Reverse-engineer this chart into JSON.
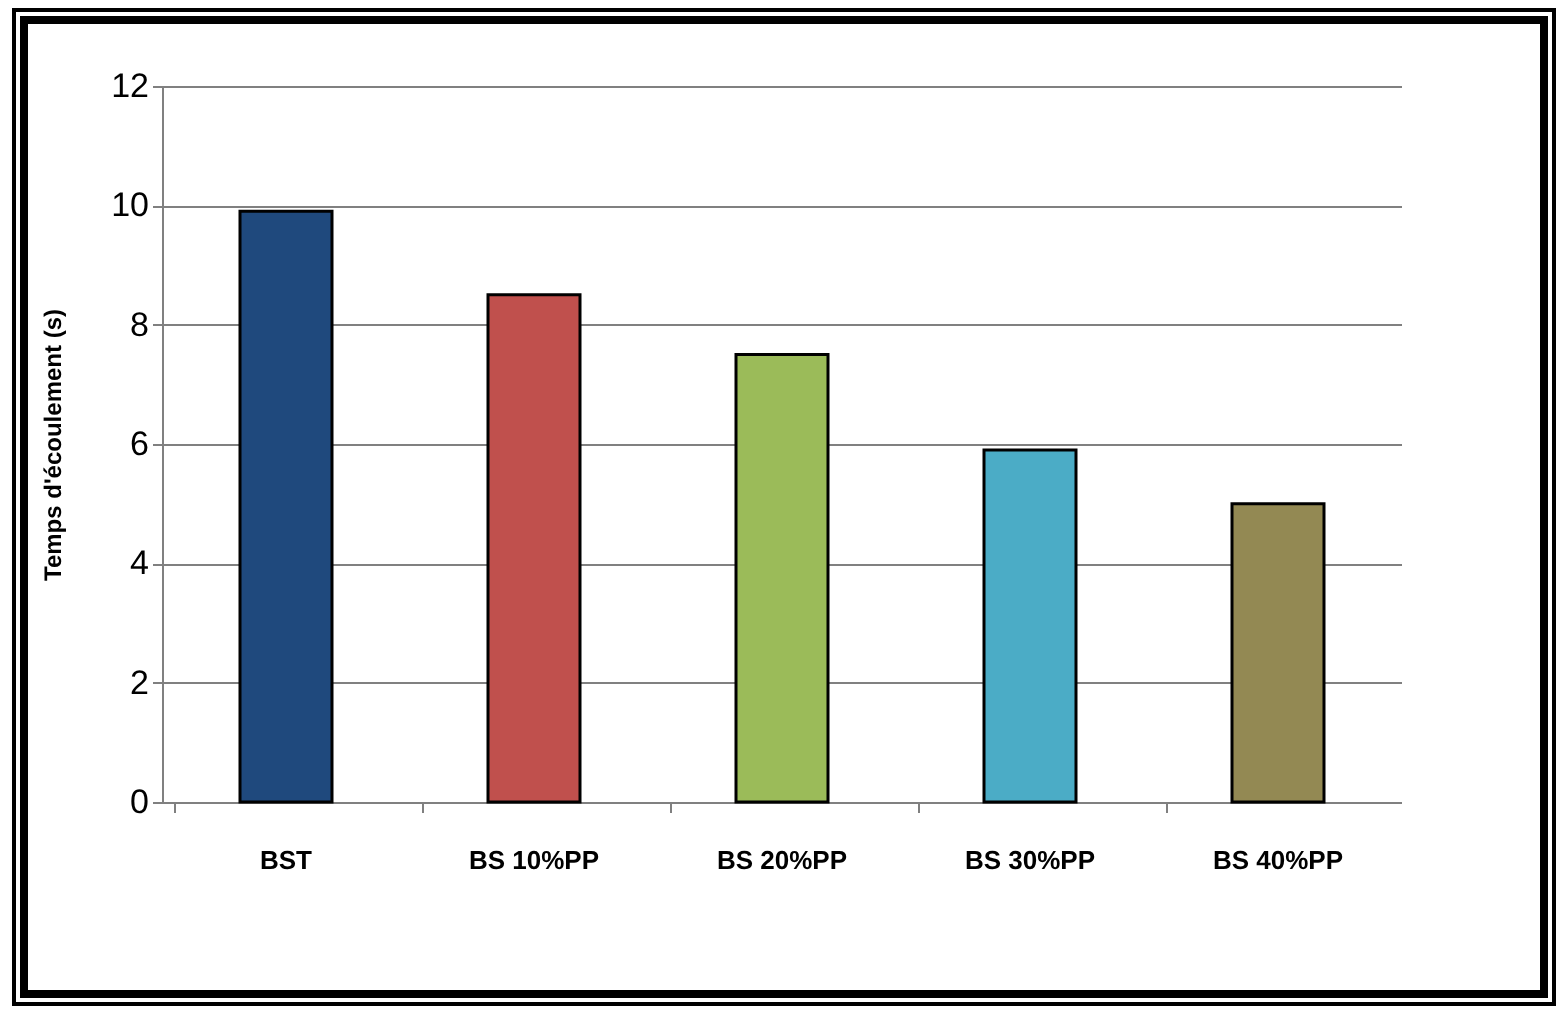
{
  "chart_data": {
    "type": "bar",
    "ylabel": "Temps d'écoulement (s)",
    "categories": [
      "BST",
      "BS 10%PP",
      "BS 20%PP",
      "BS 30%PP",
      "BS 40%PP"
    ],
    "values": [
      9.9,
      8.5,
      7.5,
      5.9,
      5.0
    ],
    "colors": [
      "#1f497d",
      "#c0504d",
      "#9bbb59",
      "#4bacc6",
      "#938953"
    ],
    "ylim": [
      0,
      12
    ],
    "yticks": [
      0,
      2,
      4,
      6,
      8,
      10,
      12
    ],
    "grid": "y"
  }
}
